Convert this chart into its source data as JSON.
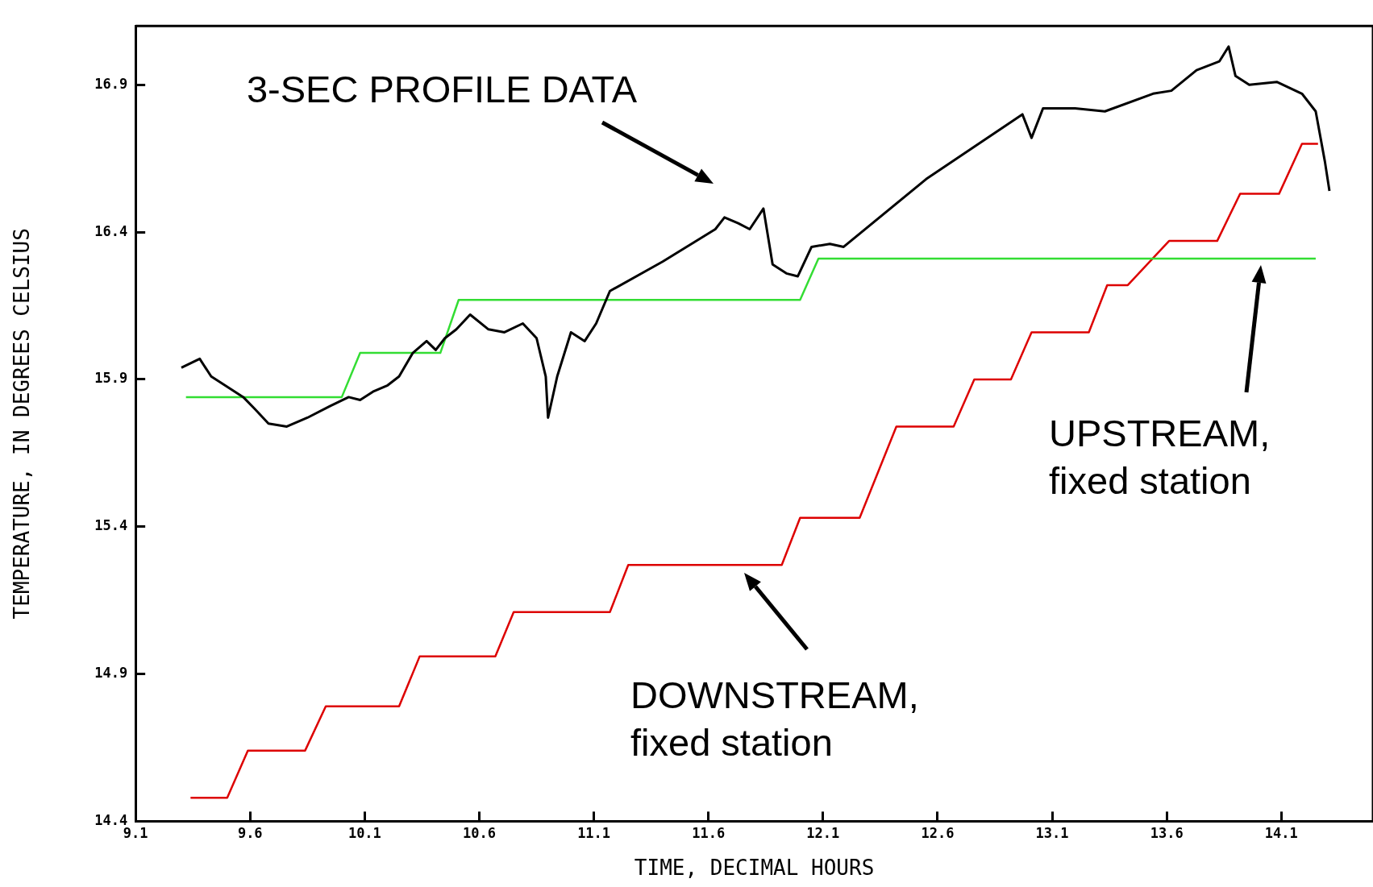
{
  "chart_data": {
    "type": "line",
    "xlabel": "TIME, DECIMAL HOURS",
    "ylabel": "TEMPERATURE, IN DEGREES CELSIUS",
    "xlim": [
      9.1,
      14.5
    ],
    "xticks": [
      {
        "value": 9.1,
        "label": "9.1"
      },
      {
        "value": 9.6,
        "label": "9.6"
      },
      {
        "value": 10.1,
        "label": "10.1"
      },
      {
        "value": 10.6,
        "label": "10.6"
      },
      {
        "value": 11.1,
        "label": "11.1"
      },
      {
        "value": 11.6,
        "label": "11.6"
      },
      {
        "value": 12.1,
        "label": "12.1"
      },
      {
        "value": 12.6,
        "label": "12.6"
      },
      {
        "value": 13.1,
        "label": "13.1"
      },
      {
        "value": 13.6,
        "label": "13.6"
      },
      {
        "value": 14.1,
        "label": "14.1"
      }
    ],
    "ylim": [
      14.4,
      17.1
    ],
    "yticks": [
      {
        "value": 14.4,
        "label": "14.4"
      },
      {
        "value": 14.9,
        "label": "14.9"
      },
      {
        "value": 15.4,
        "label": "15.4"
      },
      {
        "value": 15.9,
        "label": "15.9"
      },
      {
        "value": 16.4,
        "label": "16.4"
      },
      {
        "value": 16.9,
        "label": "16.9"
      }
    ],
    "grid": false,
    "legend": false,
    "marker": "none",
    "line_style": "solid",
    "series": [
      {
        "color": "#000000",
        "x": [
          9.3,
          9.38,
          9.43,
          9.49,
          9.57,
          9.62,
          9.68,
          9.76,
          9.85,
          9.95,
          10.03,
          10.08,
          10.14,
          10.2,
          10.25,
          10.31,
          10.37,
          10.41,
          10.45,
          10.5,
          10.56,
          10.64,
          10.71,
          10.79,
          10.85,
          10.89,
          10.9,
          10.94,
          11.0,
          11.06,
          11.11,
          11.17,
          11.4,
          11.63,
          11.67,
          11.73,
          11.78,
          11.84,
          11.88,
          11.94,
          11.99,
          12.05,
          12.13,
          12.19,
          12.55,
          12.97,
          13.01,
          13.06,
          13.2,
          13.33,
          13.54,
          13.62,
          13.73,
          13.83,
          13.87,
          13.9,
          13.96,
          14.08,
          14.19,
          14.25,
          14.29,
          14.31
        ],
        "values": [
          15.94,
          15.97,
          15.91,
          15.88,
          15.84,
          15.8,
          15.75,
          15.74,
          15.77,
          15.81,
          15.84,
          15.83,
          15.86,
          15.88,
          15.91,
          15.99,
          16.03,
          16.0,
          16.04,
          16.07,
          16.12,
          16.07,
          16.06,
          16.09,
          16.04,
          15.91,
          15.77,
          15.91,
          16.06,
          16.03,
          16.09,
          16.2,
          16.3,
          16.41,
          16.45,
          16.43,
          16.41,
          16.48,
          16.29,
          16.26,
          16.25,
          16.35,
          16.36,
          16.35,
          16.58,
          16.8,
          16.72,
          16.82,
          16.82,
          16.81,
          16.87,
          16.88,
          16.95,
          16.98,
          17.03,
          16.93,
          16.9,
          16.91,
          16.87,
          16.81,
          16.64,
          16.54
        ]
      },
      {
        "color": "#33dd33",
        "x": [
          9.32,
          10.0,
          10.08,
          10.43,
          10.51,
          12.0,
          12.08,
          14.25
        ],
        "values": [
          15.84,
          15.84,
          15.99,
          15.99,
          16.17,
          16.17,
          16.31,
          16.31
        ]
      },
      {
        "color": "#dd0000",
        "x": [
          9.34,
          9.5,
          9.59,
          9.84,
          9.93,
          10.25,
          10.34,
          10.67,
          10.75,
          11.17,
          11.25,
          11.92,
          12.0,
          12.26,
          12.42,
          12.67,
          12.76,
          12.92,
          13.01,
          13.26,
          13.34,
          13.43,
          13.61,
          13.82,
          13.92,
          14.09,
          14.19,
          14.26
        ],
        "values": [
          14.48,
          14.48,
          14.64,
          14.64,
          14.79,
          14.79,
          14.96,
          14.96,
          15.11,
          15.11,
          15.27,
          15.27,
          15.43,
          15.43,
          15.74,
          15.74,
          15.9,
          15.9,
          16.06,
          16.06,
          16.22,
          16.22,
          16.37,
          16.37,
          16.53,
          16.53,
          16.7,
          16.7
        ]
      }
    ],
    "annotations": [
      "3-SEC PROFILE DATA",
      "UPSTREAM,\nfixed station",
      "DOWNSTREAM,\nfixed station"
    ]
  }
}
